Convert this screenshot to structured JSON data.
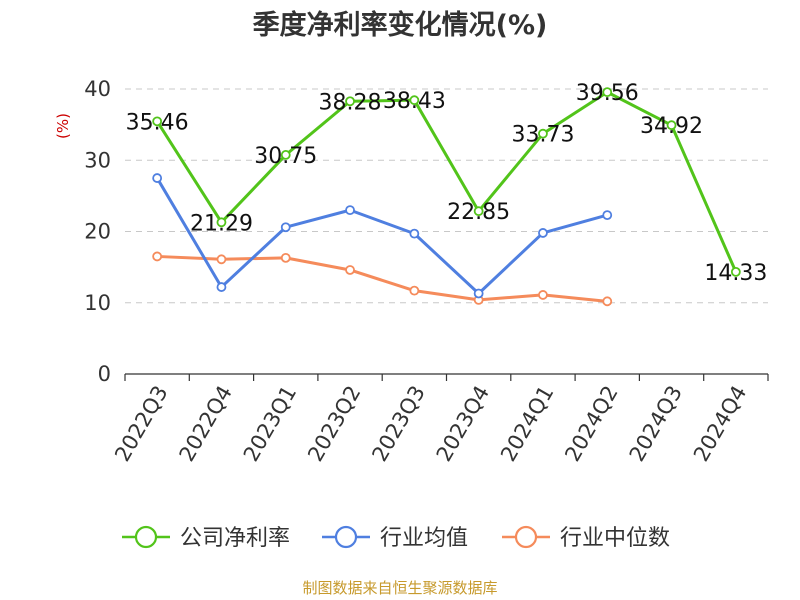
{
  "chart_data": {
    "type": "line",
    "title": "季度净利率变化情况(%)",
    "unit_label": "(%)",
    "source": "制图数据来自恒生聚源数据库",
    "categories": [
      "2022Q3",
      "2022Q4",
      "2023Q1",
      "2023Q2",
      "2023Q3",
      "2023Q4",
      "2024Q1",
      "2024Q2",
      "2024Q3",
      "2024Q4"
    ],
    "ylim": [
      0,
      40
    ],
    "yticks": [
      0,
      10,
      20,
      30,
      40
    ],
    "grid": "horizontal dashed",
    "legend_position": "bottom",
    "series": [
      {
        "name": "公司净利率",
        "color": "#52c41a",
        "show_labels": true,
        "values": [
          35.46,
          21.29,
          30.75,
          38.28,
          38.43,
          22.85,
          33.73,
          39.56,
          34.92,
          14.33
        ]
      },
      {
        "name": "行业均值",
        "color": "#4f7fe0",
        "show_labels": false,
        "values": [
          27.5,
          12.2,
          20.6,
          23.0,
          19.7,
          11.3,
          19.8,
          22.3,
          null,
          null
        ]
      },
      {
        "name": "行业中位数",
        "color": "#f58b5b",
        "show_labels": false,
        "values": [
          16.5,
          16.1,
          16.3,
          14.6,
          11.7,
          10.4,
          11.1,
          10.2,
          null,
          null
        ]
      }
    ]
  }
}
